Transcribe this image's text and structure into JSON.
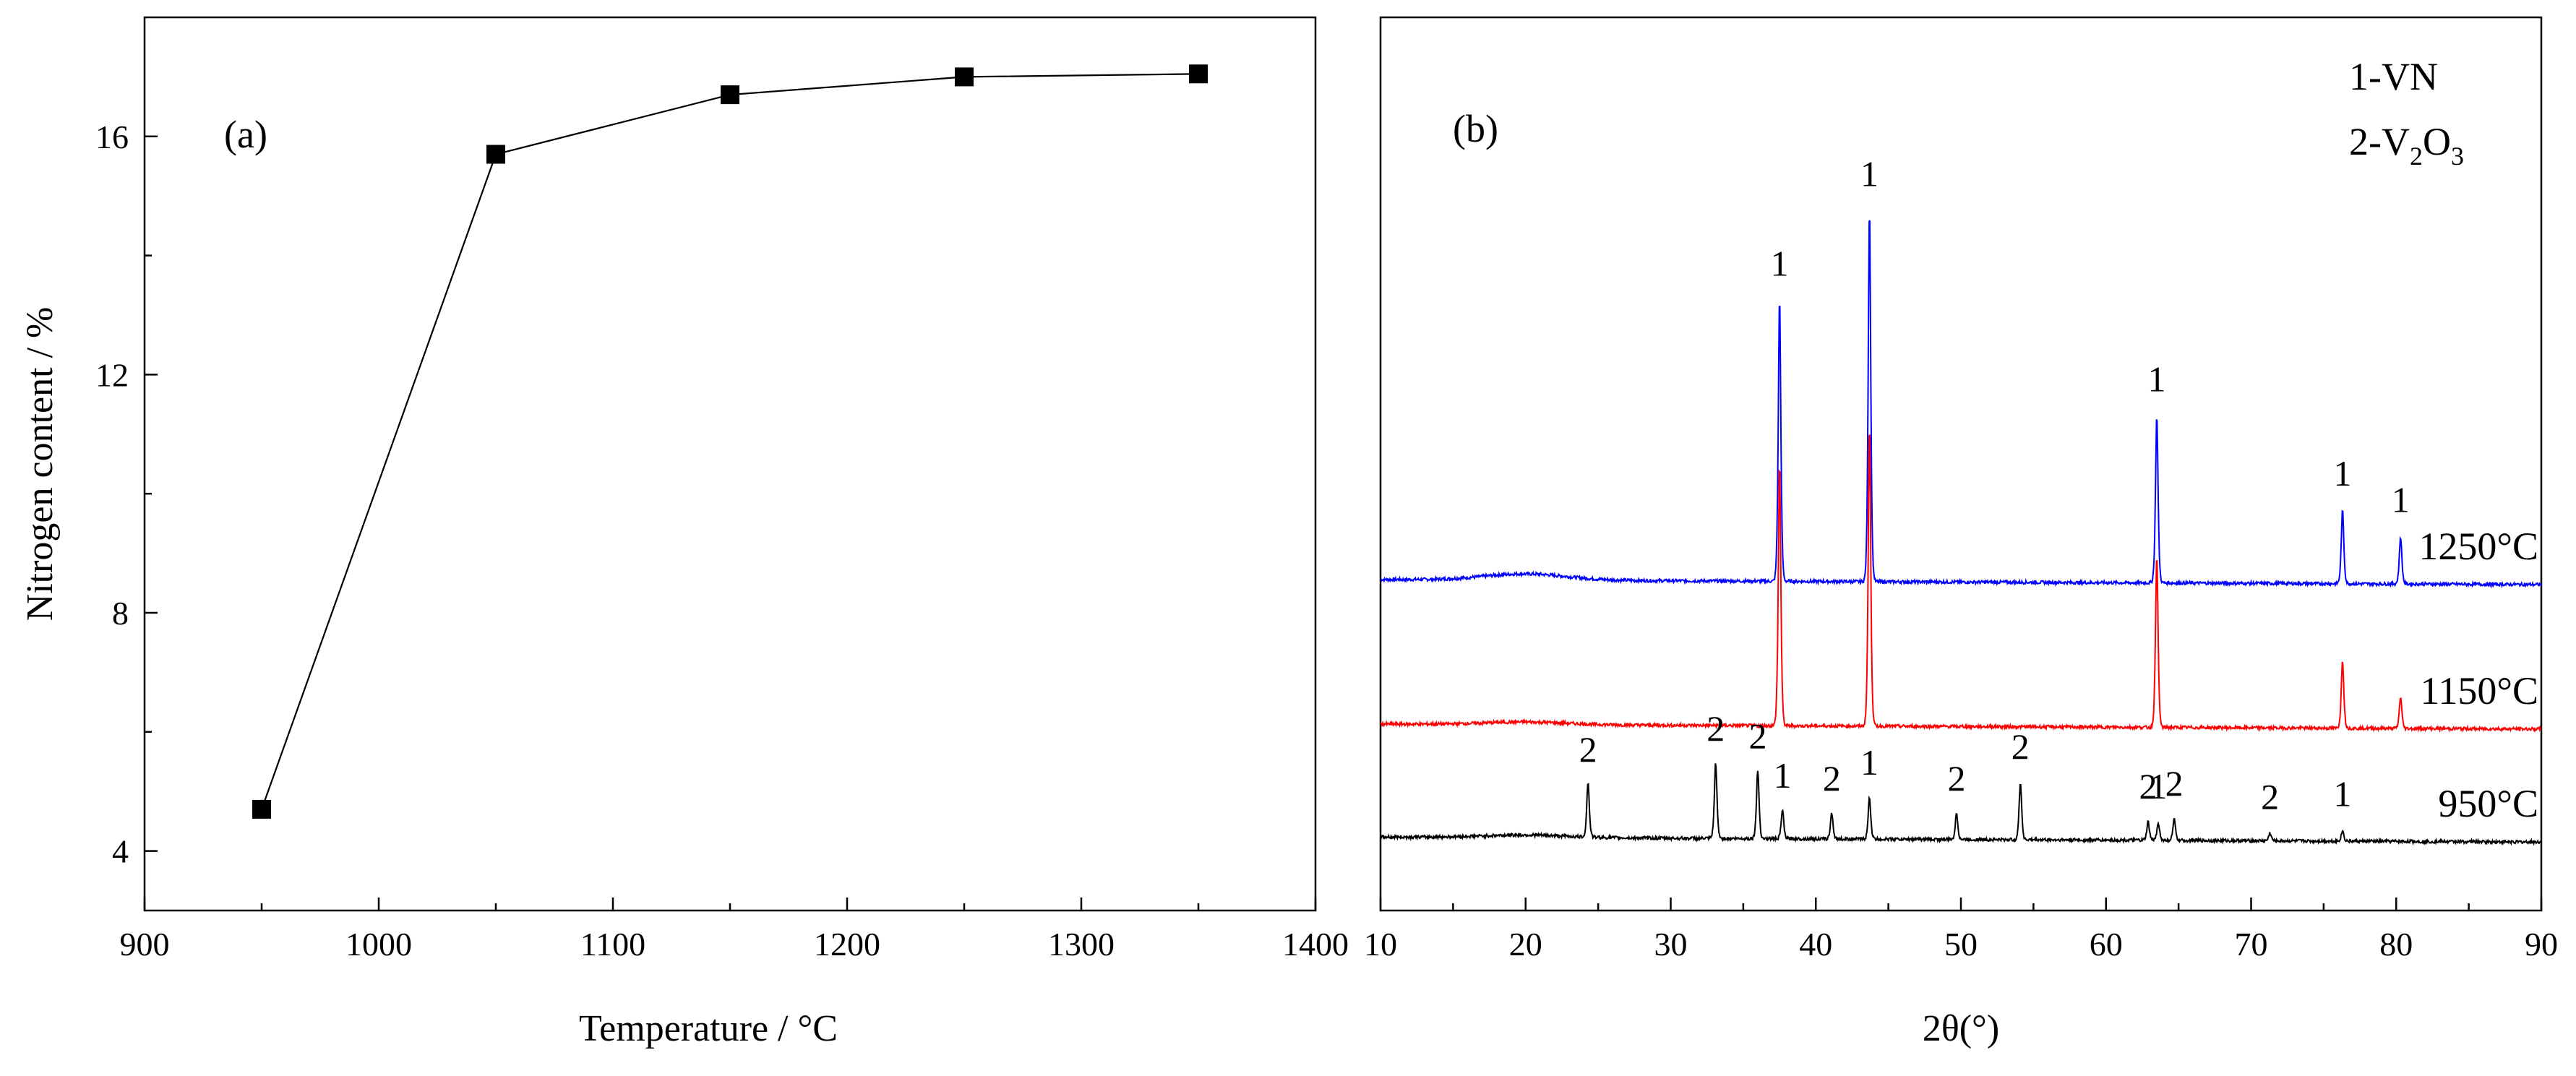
{
  "chart_data": [
    {
      "id": "a",
      "type": "line",
      "panel_label": "(a)",
      "xlabel": "Temperature / °C",
      "ylabel": "Nitrogen content / %",
      "xlim": [
        900,
        1400
      ],
      "ylim": [
        3,
        18
      ],
      "xticks": [
        900,
        1000,
        1100,
        1200,
        1300,
        1400
      ],
      "yticks": [
        4,
        8,
        12,
        16
      ],
      "marker": "square",
      "color": "#000000",
      "x": [
        950,
        1050,
        1150,
        1250,
        1350
      ],
      "y": [
        4.7,
        15.7,
        16.7,
        17.0,
        17.05
      ]
    },
    {
      "id": "b",
      "type": "line",
      "panel_label": "(b)",
      "xlabel": "2θ(°)",
      "ylabel": "",
      "xlim": [
        10,
        90
      ],
      "xticks": [
        10,
        20,
        30,
        40,
        50,
        60,
        70,
        80,
        90
      ],
      "legend_lines": [
        {
          "prefix": "1-VN"
        },
        {
          "prefix": "2-V",
          "sub1": "2",
          "mid": "O",
          "sub2": "3"
        }
      ],
      "series": [
        {
          "name": "1250°C",
          "color": "#0000ff",
          "baseline": 9.3,
          "hump": {
            "center": 20,
            "height": 0.12,
            "width": 4
          },
          "peaks": [
            {
              "x": 37.5,
              "h": 5.4,
              "label": "1"
            },
            {
              "x": 43.7,
              "h": 7.1,
              "label": "1"
            },
            {
              "x": 63.5,
              "h": 3.2,
              "label": "1"
            },
            {
              "x": 76.3,
              "h": 1.4,
              "label": "1"
            },
            {
              "x": 80.3,
              "h": 0.9,
              "label": "1"
            }
          ]
        },
        {
          "name": "1150°C",
          "color": "#ff0000",
          "baseline": 6.55,
          "hump": {
            "center": 20,
            "height": 0.05,
            "width": 4
          },
          "peaks": [
            {
              "x": 37.5,
              "h": 5.0
            },
            {
              "x": 43.7,
              "h": 5.7
            },
            {
              "x": 63.5,
              "h": 3.3
            },
            {
              "x": 76.3,
              "h": 1.3
            },
            {
              "x": 80.3,
              "h": 0.6
            }
          ]
        },
        {
          "name": "950°C",
          "color": "#000000",
          "baseline": 4.4,
          "hump": {
            "center": 20,
            "height": 0.05,
            "width": 4
          },
          "peaks": [
            {
              "x": 24.3,
              "h": 1.05,
              "label": "2"
            },
            {
              "x": 33.1,
              "h": 1.45,
              "label": "2"
            },
            {
              "x": 36.0,
              "h": 1.3,
              "label": "2"
            },
            {
              "x": 37.7,
              "h": 0.55,
              "label": "1"
            },
            {
              "x": 41.1,
              "h": 0.5,
              "label": "2"
            },
            {
              "x": 43.7,
              "h": 0.8,
              "label": "1"
            },
            {
              "x": 49.7,
              "h": 0.5,
              "label": "2"
            },
            {
              "x": 54.1,
              "h": 1.1,
              "label": "2"
            },
            {
              "x": 62.9,
              "h": 0.35,
              "label": "2"
            },
            {
              "x": 63.6,
              "h": 0.35,
              "label": "1"
            },
            {
              "x": 64.7,
              "h": 0.4,
              "label": "2"
            },
            {
              "x": 71.3,
              "h": 0.15,
              "label": "2"
            },
            {
              "x": 76.3,
              "h": 0.2,
              "label": "1"
            }
          ]
        }
      ]
    }
  ]
}
